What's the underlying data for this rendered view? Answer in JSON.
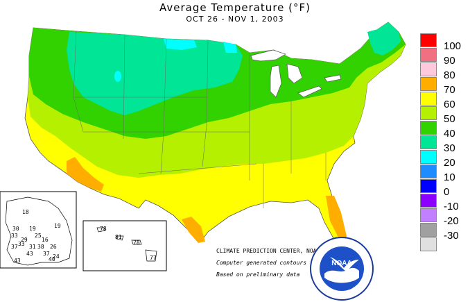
{
  "title": "Average Temperature (°F)",
  "subtitle": "OCT 26 - NOV  1, 2003",
  "credit": {
    "center": "CLIMATE PREDICTION CENTER, NOAA",
    "line2": "Computer generated contours",
    "line3": "Based on preliminary data",
    "logo_text": "NOAA"
  },
  "legend": [
    {
      "label": "100",
      "color": "#ff0000"
    },
    {
      "label": "90",
      "color": "#f07082"
    },
    {
      "label": "80",
      "color": "#ffc8dc"
    },
    {
      "label": "70",
      "color": "#ffae00"
    },
    {
      "label": "60",
      "color": "#ffff00"
    },
    {
      "label": "50",
      "color": "#b4f000"
    },
    {
      "label": "40",
      "color": "#32d200"
    },
    {
      "label": "30",
      "color": "#00e696"
    },
    {
      "label": "20",
      "color": "#00ffff"
    },
    {
      "label": "10",
      "color": "#1e8cff"
    },
    {
      "label": "0",
      "color": "#0000ff"
    },
    {
      "label": "-10",
      "color": "#8c00ff"
    },
    {
      "label": "-20",
      "color": "#c080ff"
    },
    {
      "label": "-30",
      "color": "#a0a0a0"
    },
    {
      "label": "",
      "color": "#e0e0e0"
    }
  ],
  "alaska_values": [
    "18",
    "19",
    "19",
    "25",
    "30",
    "33",
    "29",
    "16",
    "37",
    "38",
    "26",
    "31",
    "43",
    "37",
    "43",
    "40",
    "33",
    "24"
  ],
  "hawaii_values": [
    "78",
    "81",
    "78",
    "77"
  ]
}
